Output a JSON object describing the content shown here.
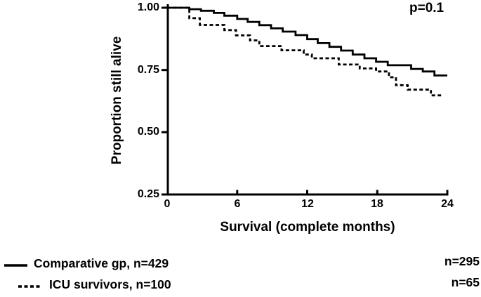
{
  "figure": {
    "p_value": "p=0.1",
    "y_axis_title": "Proportion still alive",
    "x_axis_title": "Survival (complete months)",
    "legend": [
      {
        "label": "Comparative gp, n=429",
        "marker": "solid-line",
        "count_at_end": "n=295"
      },
      {
        "label": "ICU survivors, n=100",
        "marker": "dashed-line",
        "count_at_end": "n=65"
      }
    ],
    "colors": {
      "line": "#000000",
      "background": "#ffffff"
    }
  },
  "chart_data": {
    "type": "line",
    "subtype": "kaplan-meier-step-survival",
    "title": "",
    "xlabel": "Survival (complete months)",
    "ylabel": "Proportion still alive",
    "xlim": [
      0,
      24
    ],
    "ylim": [
      0.25,
      1.0
    ],
    "x_ticks": [
      0,
      6,
      12,
      18,
      24
    ],
    "x_tick_labels": [
      "0",
      "6",
      "12",
      "18",
      "24"
    ],
    "y_ticks": [
      1.0,
      0.75,
      0.5,
      0.25
    ],
    "y_tick_labels": [
      "1.00",
      "0.75",
      "0.50",
      "0.25"
    ],
    "annotation": "p=0.1",
    "grid": false,
    "legend_position": "bottom-left",
    "series": [
      {
        "name": "Comparative gp, n=429",
        "style": "solid",
        "n_start": 429,
        "n_end": 295,
        "end_x": 24,
        "points": [
          [
            0,
            1.0
          ],
          [
            1.9,
            0.994
          ],
          [
            2.9,
            0.988
          ],
          [
            4,
            0.979
          ],
          [
            4.9,
            0.968
          ],
          [
            6,
            0.955
          ],
          [
            6.9,
            0.943
          ],
          [
            7.9,
            0.93
          ],
          [
            8.9,
            0.917
          ],
          [
            9.9,
            0.904
          ],
          [
            11,
            0.89
          ],
          [
            12,
            0.874
          ],
          [
            12.9,
            0.858
          ],
          [
            13.9,
            0.843
          ],
          [
            14.9,
            0.828
          ],
          [
            15.9,
            0.812
          ],
          [
            16.9,
            0.797
          ],
          [
            17.9,
            0.783
          ],
          [
            18.9,
            0.769
          ],
          [
            20.9,
            0.754
          ],
          [
            21.9,
            0.744
          ],
          [
            22.9,
            0.728
          ]
        ]
      },
      {
        "name": "ICU survivors, n=100",
        "style": "dashed",
        "n_start": 100,
        "n_end": 65,
        "end_x": 23.6,
        "points": [
          [
            0,
            1.0
          ],
          [
            1.9,
            0.958
          ],
          [
            2.8,
            0.931
          ],
          [
            4.9,
            0.91
          ],
          [
            5.9,
            0.889
          ],
          [
            7.1,
            0.869
          ],
          [
            7.9,
            0.846
          ],
          [
            9.8,
            0.829
          ],
          [
            11.7,
            0.812
          ],
          [
            12.4,
            0.797
          ],
          [
            14.7,
            0.772
          ],
          [
            16.5,
            0.756
          ],
          [
            17.9,
            0.744
          ],
          [
            19,
            0.721
          ],
          [
            19.6,
            0.689
          ],
          [
            20.6,
            0.671
          ],
          [
            22.6,
            0.648
          ]
        ]
      }
    ]
  }
}
